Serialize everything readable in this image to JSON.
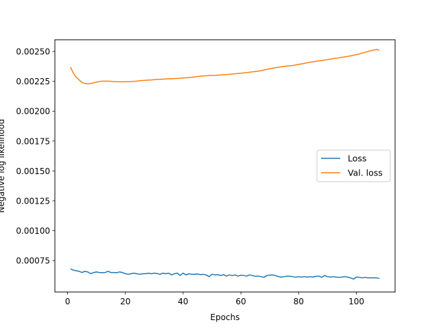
{
  "chart_data": {
    "type": "line",
    "xlabel": "Epochs",
    "ylabel": "Negative log likelihood",
    "xlim": [
      -4.4,
      113.4
    ],
    "ylim": [
      0.000487,
      0.002598
    ],
    "xticks": [
      0,
      20,
      40,
      60,
      80,
      100
    ],
    "xtick_labels": [
      "0",
      "20",
      "40",
      "60",
      "80",
      "100"
    ],
    "yticks": [
      0.00075,
      0.001,
      0.00125,
      0.0015,
      0.00175,
      0.002,
      0.00225,
      0.0025
    ],
    "ytick_labels": [
      "0.00075",
      "0.00100",
      "0.00125",
      "0.00150",
      "0.00175",
      "0.00200",
      "0.00225",
      "0.00250"
    ],
    "grid": false,
    "legend": {
      "placement": "center-right",
      "entries": [
        "Loss",
        "Val. loss"
      ]
    },
    "series": [
      {
        "name": "Loss",
        "color": "#1f77b4",
        "x": [
          1,
          2,
          3,
          4,
          5,
          6,
          7,
          8,
          9,
          10,
          11,
          12,
          13,
          14,
          15,
          16,
          17,
          18,
          19,
          20,
          21,
          22,
          23,
          24,
          25,
          26,
          27,
          28,
          29,
          30,
          31,
          32,
          33,
          34,
          35,
          36,
          37,
          38,
          39,
          40,
          41,
          42,
          43,
          44,
          45,
          46,
          47,
          48,
          49,
          50,
          51,
          52,
          53,
          54,
          55,
          56,
          57,
          58,
          59,
          60,
          61,
          62,
          63,
          64,
          65,
          66,
          67,
          68,
          69,
          70,
          71,
          72,
          73,
          74,
          75,
          76,
          77,
          78,
          79,
          80,
          81,
          82,
          83,
          84,
          85,
          86,
          87,
          88,
          89,
          90,
          91,
          92,
          93,
          94,
          95,
          96,
          97,
          98,
          99,
          100,
          101,
          102,
          103,
          104,
          105,
          106,
          107,
          108
        ],
        "values": [
          0.00068,
          0.00067,
          0.000665,
          0.00066,
          0.00065,
          0.00066,
          0.000655,
          0.00064,
          0.00065,
          0.000655,
          0.00065,
          0.000648,
          0.00065,
          0.00066,
          0.00065,
          0.00065,
          0.000648,
          0.000655,
          0.00065,
          0.00064,
          0.000635,
          0.00064,
          0.000645,
          0.00064,
          0.000635,
          0.00064,
          0.00064,
          0.000645,
          0.00064,
          0.000645,
          0.000642,
          0.000635,
          0.000645,
          0.00064,
          0.000645,
          0.00063,
          0.00064,
          0.000645,
          0.000625,
          0.000645,
          0.00063,
          0.00064,
          0.000635,
          0.000635,
          0.000638,
          0.000632,
          0.000635,
          0.00063,
          0.000615,
          0.000635,
          0.00063,
          0.000632,
          0.000625,
          0.000632,
          0.00062,
          0.00063,
          0.000625,
          0.00063,
          0.00062,
          0.000628,
          0.000625,
          0.00062,
          0.00063,
          0.000625,
          0.000618,
          0.00062,
          0.000615,
          0.00061,
          0.000625,
          0.000628,
          0.00063,
          0.000625,
          0.000615,
          0.000612,
          0.000615,
          0.00062,
          0.000618,
          0.000615,
          0.00061,
          0.000615,
          0.000612,
          0.000615,
          0.000612,
          0.000615,
          0.000612,
          0.000618,
          0.00062,
          0.00061,
          0.000625,
          0.000615,
          0.000612,
          0.000615,
          0.000612,
          0.00061,
          0.000612,
          0.000615,
          0.000612,
          0.000605,
          0.000595,
          0.000612,
          0.00061,
          0.000605,
          0.00061,
          0.000605,
          0.000605,
          0.000605,
          0.000605,
          0.0006
        ]
      },
      {
        "name": "Val. loss",
        "color": "#ff7f0e",
        "x": [
          1,
          2,
          3,
          4,
          5,
          6,
          7,
          8,
          9,
          10,
          11,
          12,
          13,
          14,
          15,
          16,
          17,
          18,
          19,
          20,
          21,
          22,
          23,
          24,
          25,
          26,
          27,
          28,
          29,
          30,
          31,
          32,
          33,
          34,
          35,
          36,
          37,
          38,
          39,
          40,
          41,
          42,
          43,
          44,
          45,
          46,
          47,
          48,
          49,
          50,
          51,
          52,
          53,
          54,
          55,
          56,
          57,
          58,
          59,
          60,
          61,
          62,
          63,
          64,
          65,
          66,
          67,
          68,
          69,
          70,
          71,
          72,
          73,
          74,
          75,
          76,
          77,
          78,
          79,
          80,
          81,
          82,
          83,
          84,
          85,
          86,
          87,
          88,
          89,
          90,
          91,
          92,
          93,
          94,
          95,
          96,
          97,
          98,
          99,
          100,
          101,
          102,
          103,
          104,
          105,
          106,
          107,
          108
        ],
        "values": [
          0.00237,
          0.002318,
          0.002285,
          0.002262,
          0.00224,
          0.002232,
          0.002228,
          0.002232,
          0.002238,
          0.002244,
          0.002248,
          0.002252,
          0.002252,
          0.002252,
          0.00225,
          0.002248,
          0.002247,
          0.002246,
          0.002246,
          0.002247,
          0.002247,
          0.002248,
          0.00225,
          0.002252,
          0.002255,
          0.002257,
          0.002259,
          0.002261,
          0.002262,
          0.002264,
          0.002266,
          0.002267,
          0.002268,
          0.00227,
          0.002271,
          0.002272,
          0.002273,
          0.002275,
          0.002276,
          0.002278,
          0.00228,
          0.002282,
          0.002284,
          0.002287,
          0.00229,
          0.002293,
          0.002295,
          0.002297,
          0.002298,
          0.002299,
          0.0023,
          0.002302,
          0.002303,
          0.002305,
          0.002307,
          0.002309,
          0.002311,
          0.002313,
          0.002316,
          0.002318,
          0.002321,
          0.002323,
          0.002326,
          0.002329,
          0.002332,
          0.002335,
          0.002339,
          0.002345,
          0.00235,
          0.002355,
          0.00236,
          0.002364,
          0.002368,
          0.002372,
          0.002375,
          0.002378,
          0.00238,
          0.002383,
          0.002387,
          0.002392,
          0.002396,
          0.002401,
          0.002406,
          0.00241,
          0.002414,
          0.002418,
          0.002421,
          0.002424,
          0.002428,
          0.002432,
          0.002436,
          0.00244,
          0.002443,
          0.002447,
          0.002451,
          0.002455,
          0.002459,
          0.002463,
          0.002468,
          0.002473,
          0.002479,
          0.002486,
          0.002493,
          0.0025,
          0.002506,
          0.002512,
          0.002517,
          0.00251
        ]
      }
    ]
  }
}
